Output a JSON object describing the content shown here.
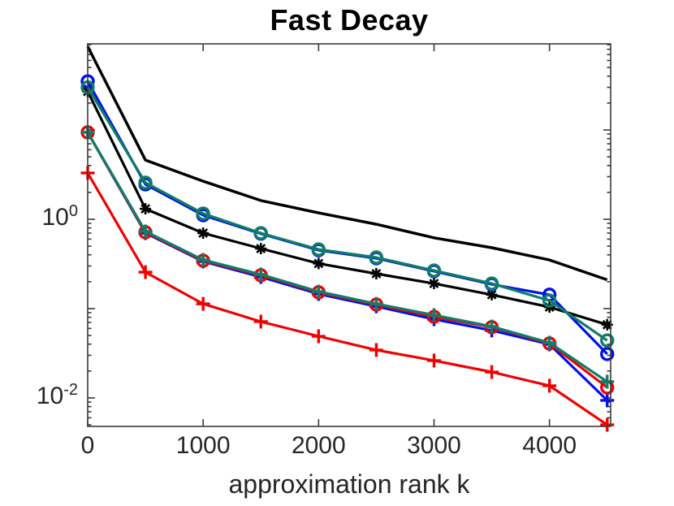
{
  "title": "Fast Decay",
  "xlabel": "approximation rank k",
  "colors": {
    "black": "#000000",
    "blue": "#0010ee",
    "teal": "#0f7d68",
    "red": "#f20000",
    "axis": "#3a3a3a",
    "text": "#262626"
  },
  "chart_data": {
    "type": "line",
    "title": "Fast Decay",
    "xlabel": "approximation rank k",
    "ylabel": "",
    "x_scale": "linear",
    "y_scale": "log",
    "xlim": [
      0,
      4530
    ],
    "ylim": [
      0.0048,
      92
    ],
    "x_ticks": [
      0,
      1000,
      2000,
      3000,
      4000
    ],
    "y_tick_exponents": [
      0,
      -2
    ],
    "grid": false,
    "legend": "none",
    "x": [
      0,
      500,
      1000,
      1500,
      2000,
      2500,
      3000,
      3500,
      4000,
      4500
    ],
    "series": [
      {
        "name": "black-solid",
        "color": "#000000",
        "marker": "none",
        "line_width": 3.5,
        "values": [
          86,
          4.6,
          2.67,
          1.62,
          1.18,
          0.88,
          0.62,
          0.48,
          0.35,
          0.21
        ]
      },
      {
        "name": "black-asterisk",
        "color": "#000000",
        "marker": "asterisk",
        "line_width": 3.2,
        "values": [
          27,
          1.31,
          0.7,
          0.47,
          0.32,
          0.246,
          0.191,
          0.143,
          0.104,
          0.066
        ]
      },
      {
        "name": "blue-plus",
        "color": "#0010ee",
        "marker": "plus",
        "line_width": 3.2,
        "values": [
          9.4,
          0.7,
          0.337,
          0.226,
          0.146,
          0.106,
          0.076,
          0.057,
          0.0398,
          0.0094
        ]
      },
      {
        "name": "blue-circle",
        "color": "#0010ee",
        "marker": "circle",
        "line_width": 3.2,
        "values": [
          35,
          2.46,
          1.11,
          0.69,
          0.45,
          0.366,
          0.262,
          0.187,
          0.143,
          0.031
        ]
      },
      {
        "name": "red-plus",
        "color": "#f20000",
        "marker": "plus",
        "line_width": 3.2,
        "values": [
          3.3,
          0.256,
          0.113,
          0.0715,
          0.049,
          0.0344,
          0.0262,
          0.0195,
          0.0137,
          0.005
        ]
      },
      {
        "name": "red-circle",
        "color": "#f20000",
        "marker": "circle",
        "line_width": 3.2,
        "values": [
          9.4,
          0.715,
          0.344,
          0.236,
          0.152,
          0.111,
          0.081,
          0.062,
          0.0407,
          0.0131
        ]
      },
      {
        "name": "teal-plus",
        "color": "#0f7d68",
        "marker": "plus",
        "line_width": 3.2,
        "values": [
          9.4,
          0.731,
          0.351,
          0.241,
          0.155,
          0.113,
          0.0846,
          0.063,
          0.0415,
          0.0152
        ]
      },
      {
        "name": "teal-circle",
        "color": "#0f7d68",
        "marker": "circle",
        "line_width": 3.2,
        "values": [
          30,
          2.57,
          1.16,
          0.7,
          0.46,
          0.374,
          0.267,
          0.191,
          0.123,
          0.044
        ]
      }
    ]
  }
}
